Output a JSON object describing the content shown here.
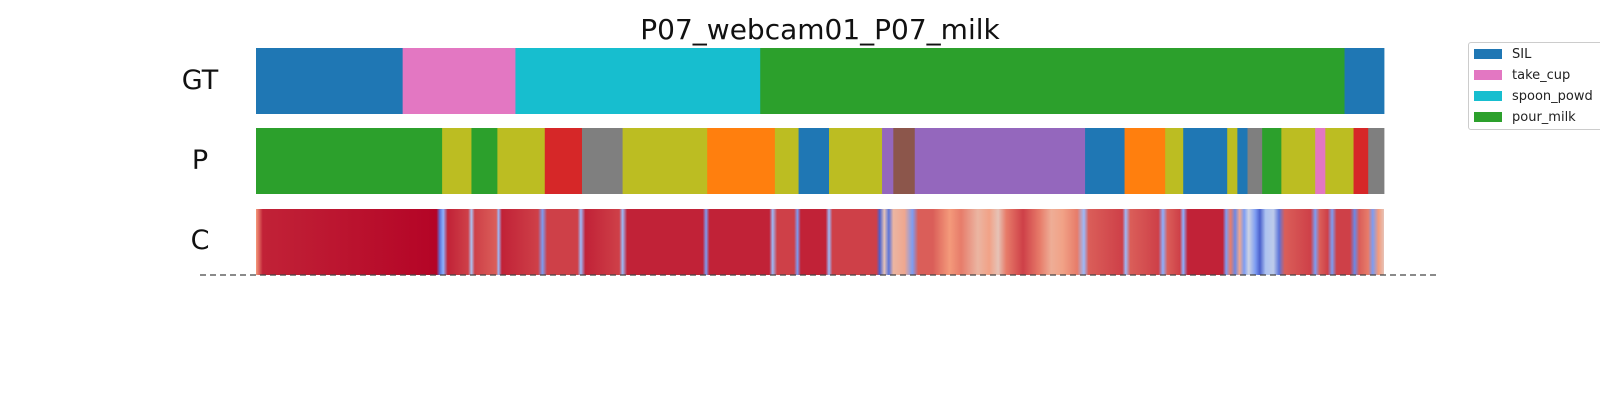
{
  "chart_data": {
    "type": "heatmap",
    "title": "P07_webcam01_P07_milk",
    "row_labels": [
      "GT",
      "P",
      "C"
    ],
    "x_range": [
      0,
      1
    ],
    "colors": {
      "SIL": "#1f77b4",
      "take_cup": "#e377c2",
      "spoon_powder": "#17becf",
      "pour_milk": "#2ca02c",
      "olive": "#bcbd22",
      "red": "#d62728",
      "gray": "#7f7f7f",
      "orange": "#ff7f0e",
      "purple": "#9467bd",
      "brown": "#8c564b"
    },
    "legend": [
      {
        "label": "SIL",
        "color": "#1f77b4"
      },
      {
        "label": "take_cup",
        "color": "#e377c2"
      },
      {
        "label": "spoon_powd",
        "color": "#17becf"
      },
      {
        "label": "pour_milk",
        "color": "#2ca02c"
      }
    ],
    "gt_segments": [
      {
        "start": 0.0,
        "end": 0.13,
        "color": "#1f77b4"
      },
      {
        "start": 0.13,
        "end": 0.23,
        "color": "#e377c2"
      },
      {
        "start": 0.23,
        "end": 0.447,
        "color": "#17becf"
      },
      {
        "start": 0.447,
        "end": 0.965,
        "color": "#2ca02c"
      },
      {
        "start": 0.965,
        "end": 1.0,
        "color": "#1f77b4"
      }
    ],
    "pred_segments": [
      {
        "start": 0.0,
        "end": 0.165,
        "color": "#2ca02c"
      },
      {
        "start": 0.165,
        "end": 0.191,
        "color": "#bcbd22"
      },
      {
        "start": 0.191,
        "end": 0.214,
        "color": "#2ca02c"
      },
      {
        "start": 0.214,
        "end": 0.256,
        "color": "#bcbd22"
      },
      {
        "start": 0.256,
        "end": 0.289,
        "color": "#d62728"
      },
      {
        "start": 0.289,
        "end": 0.325,
        "color": "#7f7f7f"
      },
      {
        "start": 0.325,
        "end": 0.4,
        "color": "#bcbd22"
      },
      {
        "start": 0.4,
        "end": 0.46,
        "color": "#ff7f0e"
      },
      {
        "start": 0.46,
        "end": 0.481,
        "color": "#bcbd22"
      },
      {
        "start": 0.481,
        "end": 0.508,
        "color": "#1f77b4"
      },
      {
        "start": 0.508,
        "end": 0.555,
        "color": "#bcbd22"
      },
      {
        "start": 0.555,
        "end": 0.565,
        "color": "#9467bd"
      },
      {
        "start": 0.565,
        "end": 0.584,
        "color": "#8c564b"
      },
      {
        "start": 0.584,
        "end": 0.735,
        "color": "#9467bd"
      },
      {
        "start": 0.735,
        "end": 0.77,
        "color": "#1f77b4"
      },
      {
        "start": 0.77,
        "end": 0.806,
        "color": "#ff7f0e"
      },
      {
        "start": 0.806,
        "end": 0.822,
        "color": "#bcbd22"
      },
      {
        "start": 0.822,
        "end": 0.861,
        "color": "#1f77b4"
      },
      {
        "start": 0.861,
        "end": 0.87,
        "color": "#bcbd22"
      },
      {
        "start": 0.87,
        "end": 0.879,
        "color": "#1f77b4"
      },
      {
        "start": 0.879,
        "end": 0.892,
        "color": "#7f7f7f"
      },
      {
        "start": 0.892,
        "end": 0.909,
        "color": "#2ca02c"
      },
      {
        "start": 0.909,
        "end": 0.939,
        "color": "#bcbd22"
      },
      {
        "start": 0.939,
        "end": 0.948,
        "color": "#e377c2"
      },
      {
        "start": 0.948,
        "end": 0.973,
        "color": "#bcbd22"
      },
      {
        "start": 0.973,
        "end": 0.986,
        "color": "#d62728"
      },
      {
        "start": 0.986,
        "end": 1.0,
        "color": "#7f7f7f"
      }
    ],
    "confidence": [
      {
        "x": 0.0,
        "v": 0.75
      },
      {
        "x": 0.006,
        "v": 0.95
      },
      {
        "x": 0.16,
        "v": 1.0
      },
      {
        "x": 0.163,
        "v": 0.1
      },
      {
        "x": 0.166,
        "v": 0.25
      },
      {
        "x": 0.17,
        "v": 0.95
      },
      {
        "x": 0.188,
        "v": 0.9
      },
      {
        "x": 0.191,
        "v": 0.35
      },
      {
        "x": 0.194,
        "v": 0.9
      },
      {
        "x": 0.213,
        "v": 0.85
      },
      {
        "x": 0.215,
        "v": 0.3
      },
      {
        "x": 0.218,
        "v": 0.95
      },
      {
        "x": 0.25,
        "v": 0.9
      },
      {
        "x": 0.254,
        "v": 0.2
      },
      {
        "x": 0.258,
        "v": 0.9
      },
      {
        "x": 0.285,
        "v": 0.9
      },
      {
        "x": 0.288,
        "v": 0.3
      },
      {
        "x": 0.292,
        "v": 0.95
      },
      {
        "x": 0.322,
        "v": 0.9
      },
      {
        "x": 0.325,
        "v": 0.3
      },
      {
        "x": 0.329,
        "v": 0.95
      },
      {
        "x": 0.396,
        "v": 0.95
      },
      {
        "x": 0.399,
        "v": 0.2
      },
      {
        "x": 0.402,
        "v": 0.95
      },
      {
        "x": 0.455,
        "v": 0.95
      },
      {
        "x": 0.458,
        "v": 0.3
      },
      {
        "x": 0.462,
        "v": 0.9
      },
      {
        "x": 0.477,
        "v": 0.9
      },
      {
        "x": 0.48,
        "v": 0.2
      },
      {
        "x": 0.483,
        "v": 0.95
      },
      {
        "x": 0.505,
        "v": 0.95
      },
      {
        "x": 0.508,
        "v": 0.3
      },
      {
        "x": 0.511,
        "v": 0.9
      },
      {
        "x": 0.55,
        "v": 0.9
      },
      {
        "x": 0.553,
        "v": 0.05
      },
      {
        "x": 0.557,
        "v": 0.6
      },
      {
        "x": 0.561,
        "v": 0.1
      },
      {
        "x": 0.565,
        "v": 0.65
      },
      {
        "x": 0.575,
        "v": 0.7
      },
      {
        "x": 0.582,
        "v": 0.2
      },
      {
        "x": 0.587,
        "v": 0.85
      },
      {
        "x": 0.6,
        "v": 0.85
      },
      {
        "x": 0.615,
        "v": 0.75
      },
      {
        "x": 0.625,
        "v": 0.8
      },
      {
        "x": 0.64,
        "v": 0.65
      },
      {
        "x": 0.65,
        "v": 0.72
      },
      {
        "x": 0.658,
        "v": 0.6
      },
      {
        "x": 0.665,
        "v": 0.8
      },
      {
        "x": 0.68,
        "v": 0.9
      },
      {
        "x": 0.695,
        "v": 0.8
      },
      {
        "x": 0.705,
        "v": 0.68
      },
      {
        "x": 0.715,
        "v": 0.72
      },
      {
        "x": 0.728,
        "v": 0.8
      },
      {
        "x": 0.734,
        "v": 0.3
      },
      {
        "x": 0.738,
        "v": 0.85
      },
      {
        "x": 0.768,
        "v": 0.9
      },
      {
        "x": 0.771,
        "v": 0.3
      },
      {
        "x": 0.775,
        "v": 0.85
      },
      {
        "x": 0.8,
        "v": 0.9
      },
      {
        "x": 0.804,
        "v": 0.25
      },
      {
        "x": 0.808,
        "v": 0.85
      },
      {
        "x": 0.819,
        "v": 0.9
      },
      {
        "x": 0.822,
        "v": 0.25
      },
      {
        "x": 0.826,
        "v": 0.95
      },
      {
        "x": 0.857,
        "v": 0.95
      },
      {
        "x": 0.86,
        "v": 0.2
      },
      {
        "x": 0.864,
        "v": 0.8
      },
      {
        "x": 0.868,
        "v": 0.15
      },
      {
        "x": 0.872,
        "v": 0.7
      },
      {
        "x": 0.876,
        "v": 0.2
      },
      {
        "x": 0.88,
        "v": 0.45
      },
      {
        "x": 0.886,
        "v": 0.2
      },
      {
        "x": 0.89,
        "v": 0.05
      },
      {
        "x": 0.895,
        "v": 0.35
      },
      {
        "x": 0.902,
        "v": 0.4
      },
      {
        "x": 0.907,
        "v": 0.1
      },
      {
        "x": 0.912,
        "v": 0.85
      },
      {
        "x": 0.935,
        "v": 0.9
      },
      {
        "x": 0.939,
        "v": 0.2
      },
      {
        "x": 0.943,
        "v": 0.85
      },
      {
        "x": 0.95,
        "v": 0.9
      },
      {
        "x": 0.954,
        "v": 0.2
      },
      {
        "x": 0.958,
        "v": 0.9
      },
      {
        "x": 0.97,
        "v": 0.9
      },
      {
        "x": 0.974,
        "v": 0.15
      },
      {
        "x": 0.978,
        "v": 0.85
      },
      {
        "x": 0.986,
        "v": 0.8
      },
      {
        "x": 0.99,
        "v": 0.2
      },
      {
        "x": 0.995,
        "v": 0.75
      },
      {
        "x": 1.0,
        "v": 0.6
      }
    ]
  }
}
